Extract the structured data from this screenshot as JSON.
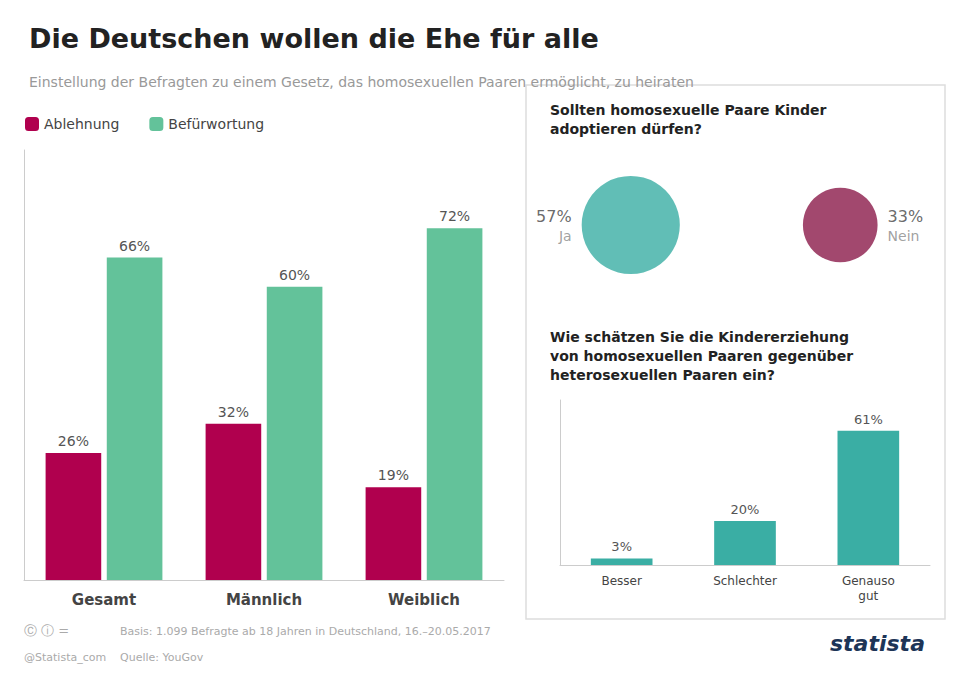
{
  "chart_data": [
    {
      "type": "bar",
      "title": "Die Deutschen wollen die Ehe für alle",
      "subtitle": "Einstellung der Befragten zu einem Gesetz, das homosexuellen Paaren ermöglicht, zu heiraten",
      "categories": [
        "Gesamt",
        "Männlich",
        "Weiblich"
      ],
      "series": [
        {
          "name": "Ablehnung",
          "color": "#b0004e",
          "values": [
            26,
            32,
            19
          ],
          "value_labels": [
            "26%",
            "32%",
            "19%"
          ]
        },
        {
          "name": "Befürwortung",
          "color": "#63c29a",
          "values": [
            66,
            60,
            72
          ],
          "value_labels": [
            "66%",
            "60%",
            "72%"
          ]
        }
      ],
      "ylim": [
        0,
        88
      ],
      "yticks": [],
      "grid": false,
      "legend": "upper left",
      "data_labels": true,
      "tick_labels": "x",
      "annotations": [
        "Ⓒ ⓘ =",
        "@Statista_com",
        "Basis: 1.099 Befragte ab 18 Jahren in Deutschland, 16.–20.05.2017",
        "Quelle: YouGov",
        "statista"
      ]
    },
    {
      "type": "bubble",
      "title": "Sollten homosexuelle Paare Kinder\nadoptieren dürfen?",
      "categories": [
        "Ja",
        "Nein"
      ],
      "values": [
        57,
        33
      ],
      "value_labels": [
        "57%",
        "33%"
      ],
      "colors": [
        "#3aaea4",
        "#8b1a4a"
      ],
      "data_labels": true,
      "tick_labels": false
    },
    {
      "type": "bar",
      "title": "Wie schätzen Sie die Kindererziehung\nvon homosexuellen Paaren gegenüber\nheterosexuellen Paaren ein?",
      "categories": [
        "Besser",
        "Schlechter",
        "Genauso\ngut"
      ],
      "values": [
        3,
        20,
        61
      ],
      "value_labels": [
        "3%",
        "20%",
        "61%"
      ],
      "color": "#3aaea4",
      "ylim": [
        0,
        75
      ],
      "yticks": [],
      "grid": false,
      "data_labels": true,
      "tick_labels": "x"
    }
  ]
}
